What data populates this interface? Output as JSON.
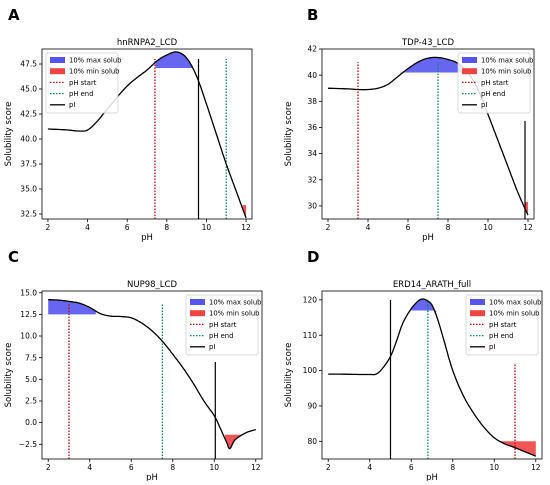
{
  "chart_data": [
    {
      "type": "line",
      "panel_label": "A",
      "title": "hnRNPA2_LCD",
      "xlabel": "pH",
      "ylabel": "Solubility score",
      "xlim": [
        1.7,
        12.3
      ],
      "ylim": [
        32.0,
        49.0
      ],
      "xticks": [
        2,
        4,
        6,
        8,
        10,
        12
      ],
      "yticks": [
        32.5,
        35.0,
        37.5,
        40.0,
        42.5,
        45.0,
        47.5
      ],
      "ytick_labels": [
        "32.5",
        "35.0",
        "37.5",
        "40.0",
        "42.5",
        "45.0",
        "47.5"
      ],
      "curve": {
        "x": [
          2,
          3,
          3.5,
          4,
          4.5,
          5,
          6,
          7,
          7.5,
          8,
          8.5,
          9,
          9.5,
          10,
          10.5,
          11,
          11.5,
          12
        ],
        "y": [
          41.0,
          40.9,
          40.8,
          40.9,
          41.8,
          43.0,
          45.3,
          46.9,
          47.8,
          48.4,
          48.7,
          48.1,
          46.3,
          43.5,
          40.5,
          37.5,
          34.8,
          32.1
        ]
      },
      "max_region": {
        "xrange": [
          7.4,
          9.4
        ],
        "threshold": 47.1
      },
      "min_region": {
        "xrange": [
          11.8,
          12.0
        ],
        "threshold": 33.4
      },
      "vlines": [
        {
          "type": "pH start",
          "x": 7.4,
          "ymin": 32.0,
          "ymax": 48.0
        },
        {
          "type": "pH end",
          "x": 11.0,
          "ymin": 32.0,
          "ymax": 48.0
        },
        {
          "type": "pI",
          "x": 9.6,
          "ymin": 32.0,
          "ymax": 48.0
        }
      ],
      "legend": [
        "10% max solub",
        "10% min solub",
        "pH start",
        "pH end",
        "pI"
      ],
      "legend_loc": "upper left"
    },
    {
      "type": "line",
      "panel_label": "B",
      "title": "TDP-43_LCD",
      "xlabel": "pH",
      "ylabel": "Solubility score",
      "xlim": [
        1.7,
        12.3
      ],
      "ylim": [
        29.0,
        42.0
      ],
      "xticks": [
        2,
        4,
        6,
        8,
        10,
        12
      ],
      "yticks": [
        30,
        32,
        34,
        36,
        38,
        40,
        42
      ],
      "ytick_labels": [
        "30",
        "32",
        "34",
        "36",
        "38",
        "40",
        "42"
      ],
      "curve": {
        "x": [
          2,
          3,
          3.5,
          4,
          4.5,
          5,
          5.5,
          6,
          6.5,
          7,
          7.5,
          8,
          8.5,
          9,
          9.5,
          10,
          10.5,
          11,
          11.5,
          12
        ],
        "y": [
          39.0,
          38.95,
          38.9,
          38.9,
          39.0,
          39.3,
          39.9,
          40.5,
          41.0,
          41.3,
          41.35,
          41.2,
          40.9,
          40.2,
          38.9,
          37.0,
          35.0,
          33.0,
          31.0,
          29.3
        ]
      },
      "max_region": {
        "xrange": [
          5.6,
          9.0
        ],
        "threshold": 40.2
      },
      "min_region": {
        "xrange": [
          11.8,
          12.0
        ],
        "threshold": 30.3
      },
      "vlines": [
        {
          "type": "pH start",
          "x": 3.5,
          "ymin": 29.0,
          "ymax": 41.0
        },
        {
          "type": "pH end",
          "x": 7.5,
          "ymin": 29.0,
          "ymax": 41.0
        },
        {
          "type": "pI",
          "x": 11.85,
          "ymin": 29.0,
          "ymax": 36.5
        }
      ],
      "legend": [
        "10% max solub",
        "10% min solub",
        "pH start",
        "pH end",
        "pI"
      ],
      "legend_loc": "upper right"
    },
    {
      "type": "line",
      "panel_label": "C",
      "title": "NUP98_LCD",
      "xlabel": "pH",
      "ylabel": "Solubility score",
      "xlim": [
        1.7,
        12.3
      ],
      "ylim": [
        -4.2,
        15.2
      ],
      "xticks": [
        2,
        4,
        6,
        8,
        10,
        12
      ],
      "yticks": [
        -2.5,
        0.0,
        2.5,
        5.0,
        7.5,
        10.0,
        12.5,
        15.0
      ],
      "ytick_labels": [
        "−2.5",
        "0.0",
        "2.5",
        "5.0",
        "7.5",
        "10.0",
        "12.5",
        "15.0"
      ],
      "curve": {
        "x": [
          2,
          2.5,
          3,
          3.5,
          4,
          4.5,
          5,
          5.5,
          6,
          6.5,
          7,
          7.5,
          8,
          8.5,
          9,
          9.5,
          10,
          10.3,
          10.6,
          10.75,
          11,
          11.5,
          12
        ],
        "y": [
          14.2,
          14.15,
          14.0,
          13.8,
          13.3,
          12.6,
          12.3,
          12.25,
          12.1,
          11.5,
          10.6,
          9.4,
          7.9,
          6.3,
          4.5,
          2.5,
          0.8,
          -0.7,
          -2.3,
          -3.0,
          -2.0,
          -1.2,
          -0.8
        ]
      },
      "max_region": {
        "xrange": [
          2.0,
          4.3
        ],
        "threshold": 12.5
      },
      "min_region": {
        "xrange": [
          10.5,
          11.3
        ],
        "threshold": -1.4
      },
      "vlines": [
        {
          "type": "pH start",
          "x": 3.0,
          "ymin": -4.2,
          "ymax": 13.8
        },
        {
          "type": "pH end",
          "x": 7.5,
          "ymin": -4.2,
          "ymax": 13.8
        },
        {
          "type": "pI",
          "x": 10.05,
          "ymin": -4.2,
          "ymax": 7.0
        }
      ],
      "legend": [
        "10% max solub",
        "10% min solub",
        "pH start",
        "pH end",
        "pI"
      ],
      "legend_loc": "upper right"
    },
    {
      "type": "line",
      "panel_label": "D",
      "title": "ERD14_ARATH_full",
      "xlabel": "pH",
      "ylabel": "Solubility score",
      "xlim": [
        1.7,
        12.3
      ],
      "ylim": [
        75.0,
        122.5
      ],
      "xticks": [
        2,
        4,
        6,
        8,
        10,
        12
      ],
      "yticks": [
        80,
        90,
        100,
        110,
        120
      ],
      "ytick_labels": [
        "80",
        "90",
        "100",
        "110",
        "120"
      ],
      "curve": {
        "x": [
          2,
          2.5,
          3,
          3.5,
          4,
          4.3,
          4.6,
          5,
          5.3,
          5.6,
          6,
          6.3,
          6.5,
          6.7,
          7,
          7.3,
          7.6,
          8,
          8.5,
          9,
          9.5,
          10,
          10.5,
          11,
          11.5,
          12
        ],
        "y": [
          99.0,
          99.0,
          98.95,
          98.9,
          98.9,
          99.0,
          100.5,
          104.0,
          108.5,
          113.5,
          117.5,
          119.5,
          120.2,
          120.0,
          118.5,
          114.0,
          108.0,
          100.0,
          93.0,
          88.0,
          84.0,
          81.0,
          79.3,
          78.2,
          77.0,
          75.8
        ]
      },
      "max_region": {
        "xrange": [
          6.0,
          7.2
        ],
        "threshold": 117.0
      },
      "min_region": {
        "xrange": [
          10.2,
          12.0
        ],
        "threshold": 80.0
      },
      "vlines": [
        {
          "type": "pH start",
          "x": 11.0,
          "ymin": 75.0,
          "ymax": 102.0
        },
        {
          "type": "pH end",
          "x": 6.8,
          "ymin": 75.0,
          "ymax": 120.0
        },
        {
          "type": "pI",
          "x": 5.0,
          "ymin": 75.0,
          "ymax": 120.0
        }
      ],
      "legend": [
        "10% max solub",
        "10% min solub",
        "pH start",
        "pH end",
        "pI"
      ],
      "legend_loc": "upper right"
    }
  ],
  "colors": {
    "curve": "#000000",
    "max_fill": "#5555ee",
    "min_fill": "#ee4444",
    "ph_start": "#cc0000",
    "ph_end": "#008a5e",
    "pi": "#000000"
  }
}
